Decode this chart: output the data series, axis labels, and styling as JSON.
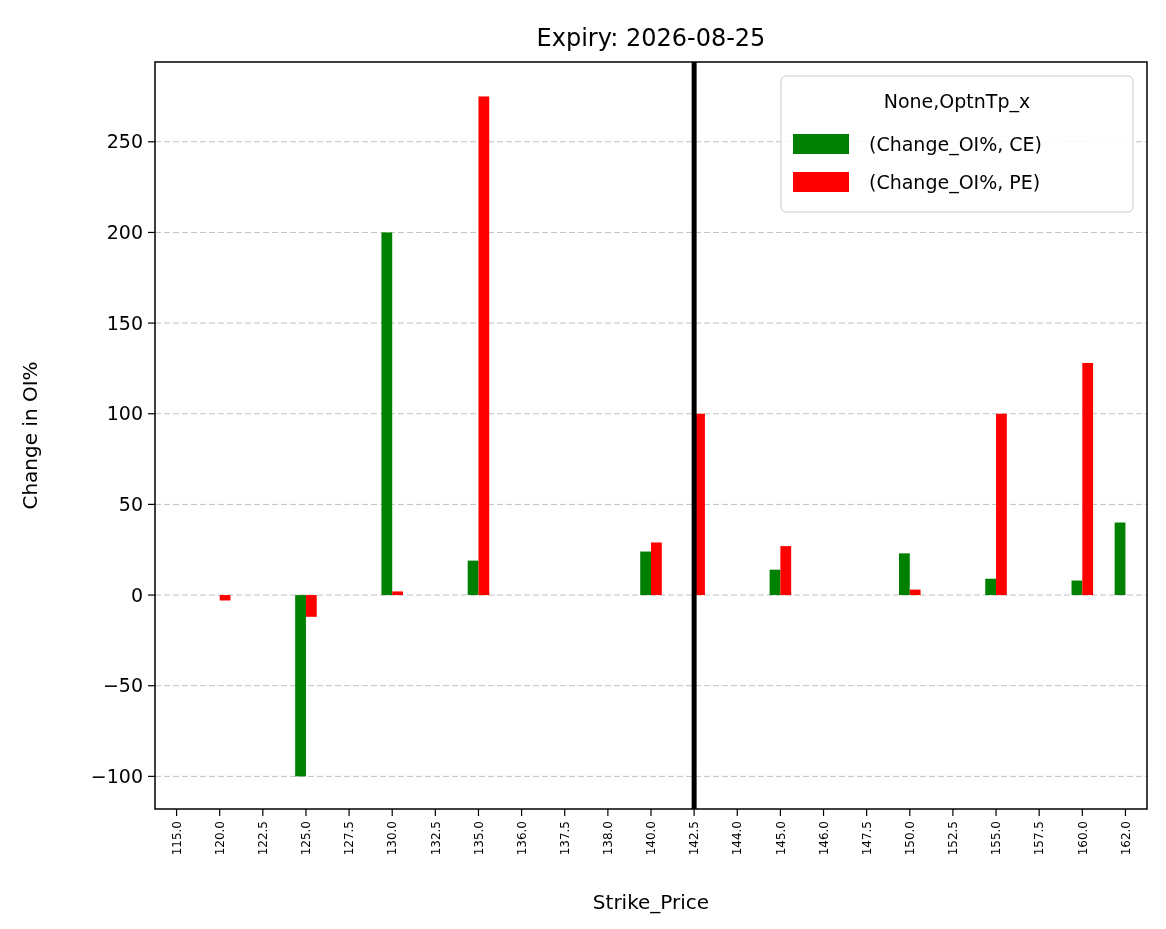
{
  "chart_data": {
    "type": "bar",
    "title": "Expiry: 2026-08-25",
    "xlabel": "Strike_Price",
    "ylabel": "Change in OI%",
    "legend_title": "None,OptnTp_x",
    "categories": [
      "115.0",
      "120.0",
      "122.5",
      "125.0",
      "127.5",
      "130.0",
      "132.5",
      "135.0",
      "136.0",
      "137.5",
      "138.0",
      "140.0",
      "142.5",
      "144.0",
      "145.0",
      "146.0",
      "147.5",
      "150.0",
      "152.5",
      "155.0",
      "157.5",
      "160.0",
      "162.0"
    ],
    "series": [
      {
        "name": "(Change_OI%, CE)",
        "color": "#008000",
        "values": [
          null,
          null,
          null,
          -100,
          null,
          200,
          null,
          19,
          null,
          null,
          null,
          24,
          null,
          null,
          14,
          null,
          null,
          23,
          null,
          9,
          null,
          8,
          40
        ]
      },
      {
        "name": "(Change_OI%, PE)",
        "color": "#ff0000",
        "values": [
          null,
          -3,
          null,
          -12,
          null,
          2,
          null,
          275,
          null,
          null,
          null,
          29,
          100,
          null,
          27,
          null,
          null,
          3,
          null,
          100,
          null,
          128,
          null
        ]
      }
    ],
    "ylim": [
      -118,
      294
    ],
    "yticks": [
      {
        "value": -100,
        "label": "−100"
      },
      {
        "value": -50,
        "label": "−50"
      },
      0,
      50,
      100,
      150,
      200,
      250
    ],
    "grid": "y",
    "legend": "top right",
    "ref_lines": [
      {
        "axis": "x",
        "value": "142.5",
        "color": "#000000"
      }
    ]
  }
}
